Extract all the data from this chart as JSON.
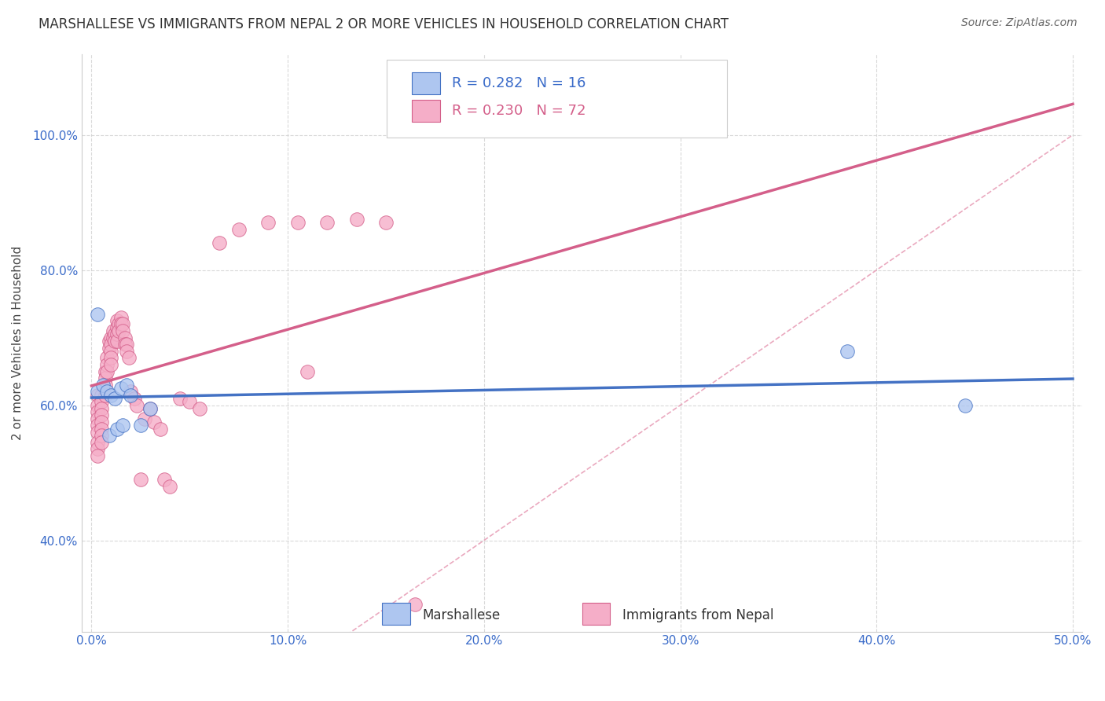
{
  "title": "MARSHALLESE VS IMMIGRANTS FROM NEPAL 2 OR MORE VEHICLES IN HOUSEHOLD CORRELATION CHART",
  "source": "Source: ZipAtlas.com",
  "ylabel_label": "2 or more Vehicles in Household",
  "xaxis_ticks": [
    0.0,
    0.1,
    0.2,
    0.3,
    0.4,
    0.5
  ],
  "xaxis_tick_labels": [
    "0.0%",
    "10.0%",
    "20.0%",
    "30.0%",
    "40.0%",
    "50.0%"
  ],
  "yaxis_ticks": [
    0.4,
    0.6,
    0.8,
    1.0
  ],
  "yaxis_tick_labels": [
    "40.0%",
    "60.0%",
    "80.0%",
    "100.0%"
  ],
  "xlim": [
    -0.005,
    0.505
  ],
  "ylim": [
    0.265,
    1.12
  ],
  "marshallese_R": 0.282,
  "marshallese_N": 16,
  "nepal_R": 0.23,
  "nepal_N": 72,
  "marshallese_color": "#aec6f0",
  "nepal_color": "#f5aec8",
  "marshallese_line_color": "#4472c4",
  "nepal_line_color": "#d45f8a",
  "diagonal_color": "#e8a0b8",
  "background_color": "#ffffff",
  "grid_color": "#d0d0d0",
  "marshallese_x": [
    0.003,
    0.003,
    0.006,
    0.008,
    0.009,
    0.01,
    0.012,
    0.013,
    0.015,
    0.016,
    0.018,
    0.02,
    0.025,
    0.03,
    0.385,
    0.445
  ],
  "marshallese_y": [
    0.62,
    0.735,
    0.63,
    0.62,
    0.555,
    0.615,
    0.61,
    0.565,
    0.625,
    0.57,
    0.63,
    0.615,
    0.57,
    0.595,
    0.68,
    0.6
  ],
  "nepal_x": [
    0.003,
    0.003,
    0.003,
    0.003,
    0.003,
    0.003,
    0.003,
    0.003,
    0.003,
    0.005,
    0.005,
    0.005,
    0.005,
    0.005,
    0.005,
    0.005,
    0.005,
    0.007,
    0.007,
    0.007,
    0.007,
    0.008,
    0.008,
    0.008,
    0.009,
    0.009,
    0.01,
    0.01,
    0.01,
    0.01,
    0.01,
    0.011,
    0.011,
    0.012,
    0.012,
    0.013,
    0.013,
    0.013,
    0.013,
    0.014,
    0.014,
    0.015,
    0.015,
    0.016,
    0.016,
    0.017,
    0.017,
    0.018,
    0.018,
    0.019,
    0.02,
    0.022,
    0.023,
    0.025,
    0.027,
    0.03,
    0.032,
    0.035,
    0.037,
    0.04,
    0.045,
    0.05,
    0.055,
    0.065,
    0.075,
    0.09,
    0.105,
    0.11,
    0.12,
    0.135,
    0.15,
    0.165
  ],
  "nepal_y": [
    0.615,
    0.6,
    0.59,
    0.58,
    0.57,
    0.56,
    0.545,
    0.535,
    0.525,
    0.615,
    0.605,
    0.595,
    0.585,
    0.575,
    0.565,
    0.555,
    0.545,
    0.65,
    0.64,
    0.63,
    0.615,
    0.67,
    0.66,
    0.65,
    0.695,
    0.685,
    0.7,
    0.69,
    0.68,
    0.67,
    0.66,
    0.71,
    0.7,
    0.705,
    0.695,
    0.725,
    0.715,
    0.705,
    0.695,
    0.72,
    0.71,
    0.73,
    0.72,
    0.72,
    0.71,
    0.7,
    0.69,
    0.69,
    0.68,
    0.67,
    0.62,
    0.61,
    0.6,
    0.49,
    0.58,
    0.595,
    0.575,
    0.565,
    0.49,
    0.48,
    0.61,
    0.605,
    0.595,
    0.84,
    0.86,
    0.87,
    0.87,
    0.65,
    0.87,
    0.875,
    0.87,
    0.305
  ]
}
